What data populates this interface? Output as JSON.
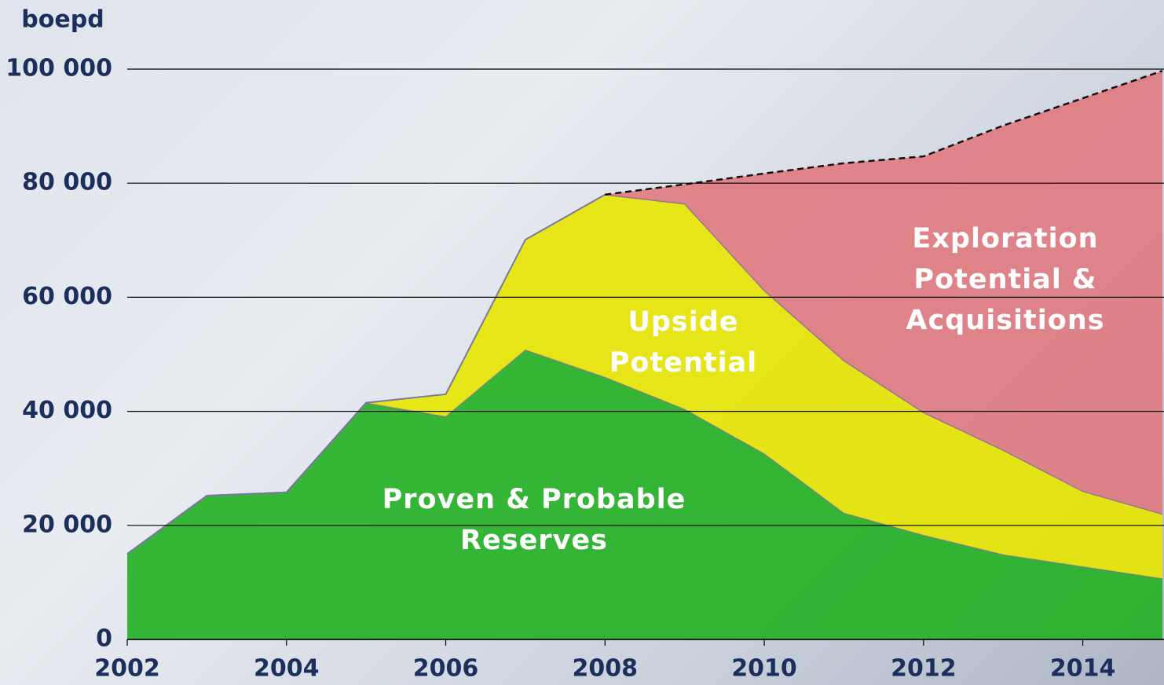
{
  "chart_data": {
    "type": "stacked_area",
    "y_label": "boepd",
    "x": [
      2002,
      2003,
      2004,
      2005,
      2006,
      2007,
      2008,
      2009,
      2010,
      2011,
      2012,
      2013,
      2014,
      2015
    ],
    "series": [
      {
        "name": "Proven & Probable Reserves",
        "color": "#22b022",
        "values": [
          15000,
          25200,
          25800,
          41500,
          39100,
          50800,
          46000,
          40400,
          32600,
          22200,
          18300,
          14900,
          12800,
          10700
        ]
      },
      {
        "name": "Upside Potential",
        "color": "#e8e600",
        "values": [
          0,
          0,
          0,
          0,
          3900,
          19300,
          32000,
          36000,
          28600,
          26700,
          21500,
          18300,
          13200,
          11300
        ]
      },
      {
        "name": "Exploration Potential & Acquisitions",
        "color": "#e07a80",
        "values": [
          null,
          null,
          null,
          null,
          null,
          null,
          0,
          3400,
          20500,
          34600,
          44900,
          56900,
          68900,
          77700
        ]
      }
    ],
    "xlim": [
      2002,
      2015
    ],
    "xticks": [
      2002,
      2004,
      2006,
      2008,
      2010,
      2012,
      2014
    ],
    "ylim": [
      0,
      100000
    ],
    "yticks": [
      0,
      {
        "value": 20000,
        "label": "20 000"
      },
      {
        "value": 40000,
        "label": "40 000"
      },
      {
        "value": 60000,
        "label": "60 000"
      },
      {
        "value": 80000,
        "label": "80 000"
      },
      {
        "value": 100000,
        "label": "100 000"
      }
    ],
    "grid": true
  }
}
